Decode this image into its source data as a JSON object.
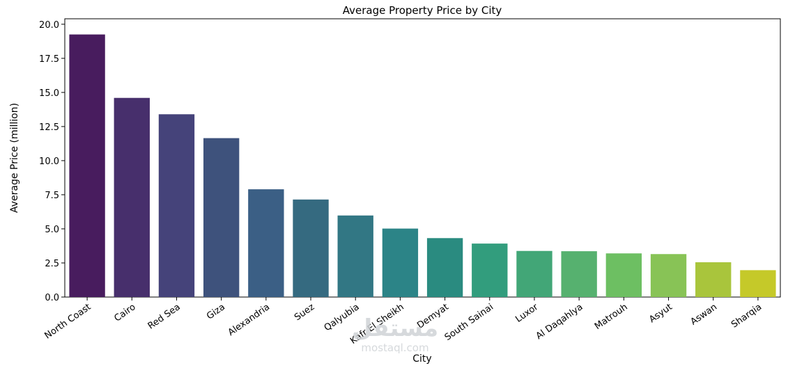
{
  "chart_data": {
    "type": "bar",
    "title": "Average Property Price by City",
    "xlabel": "City",
    "ylabel": "Average Price (million)",
    "categories": [
      "North Coast",
      "Cairo",
      "Red Sea",
      "Giza",
      "Alexandria",
      "Suez",
      "Qalyubia",
      "Kafr El Sheikh",
      "Demyat",
      "South Sainai",
      "Luxor",
      "Al Daqahlya",
      "Matrouh",
      "Asyut",
      "Aswan",
      "Sharqia"
    ],
    "values": [
      19.25,
      14.6,
      13.4,
      11.65,
      7.9,
      7.15,
      5.98,
      5.02,
      4.32,
      3.92,
      3.38,
      3.36,
      3.2,
      3.15,
      2.55,
      1.97
    ],
    "colors": [
      "#481c5e",
      "#472f6c",
      "#45437a",
      "#3e527c",
      "#3b5f85",
      "#356a80",
      "#327784",
      "#2c8487",
      "#2a8b80",
      "#329d7d",
      "#42a677",
      "#56b16f",
      "#6dbf62",
      "#88c356",
      "#a9c53c",
      "#c5c929"
    ],
    "yticks": [
      "0.0",
      "2.5",
      "5.0",
      "7.5",
      "10.0",
      "12.5",
      "15.0",
      "17.5",
      "20.0"
    ],
    "ylim": [
      0,
      20.4
    ],
    "grid": false,
    "legend": "none"
  },
  "watermark": {
    "logo": "مستقل",
    "site": "mostaql.com"
  }
}
